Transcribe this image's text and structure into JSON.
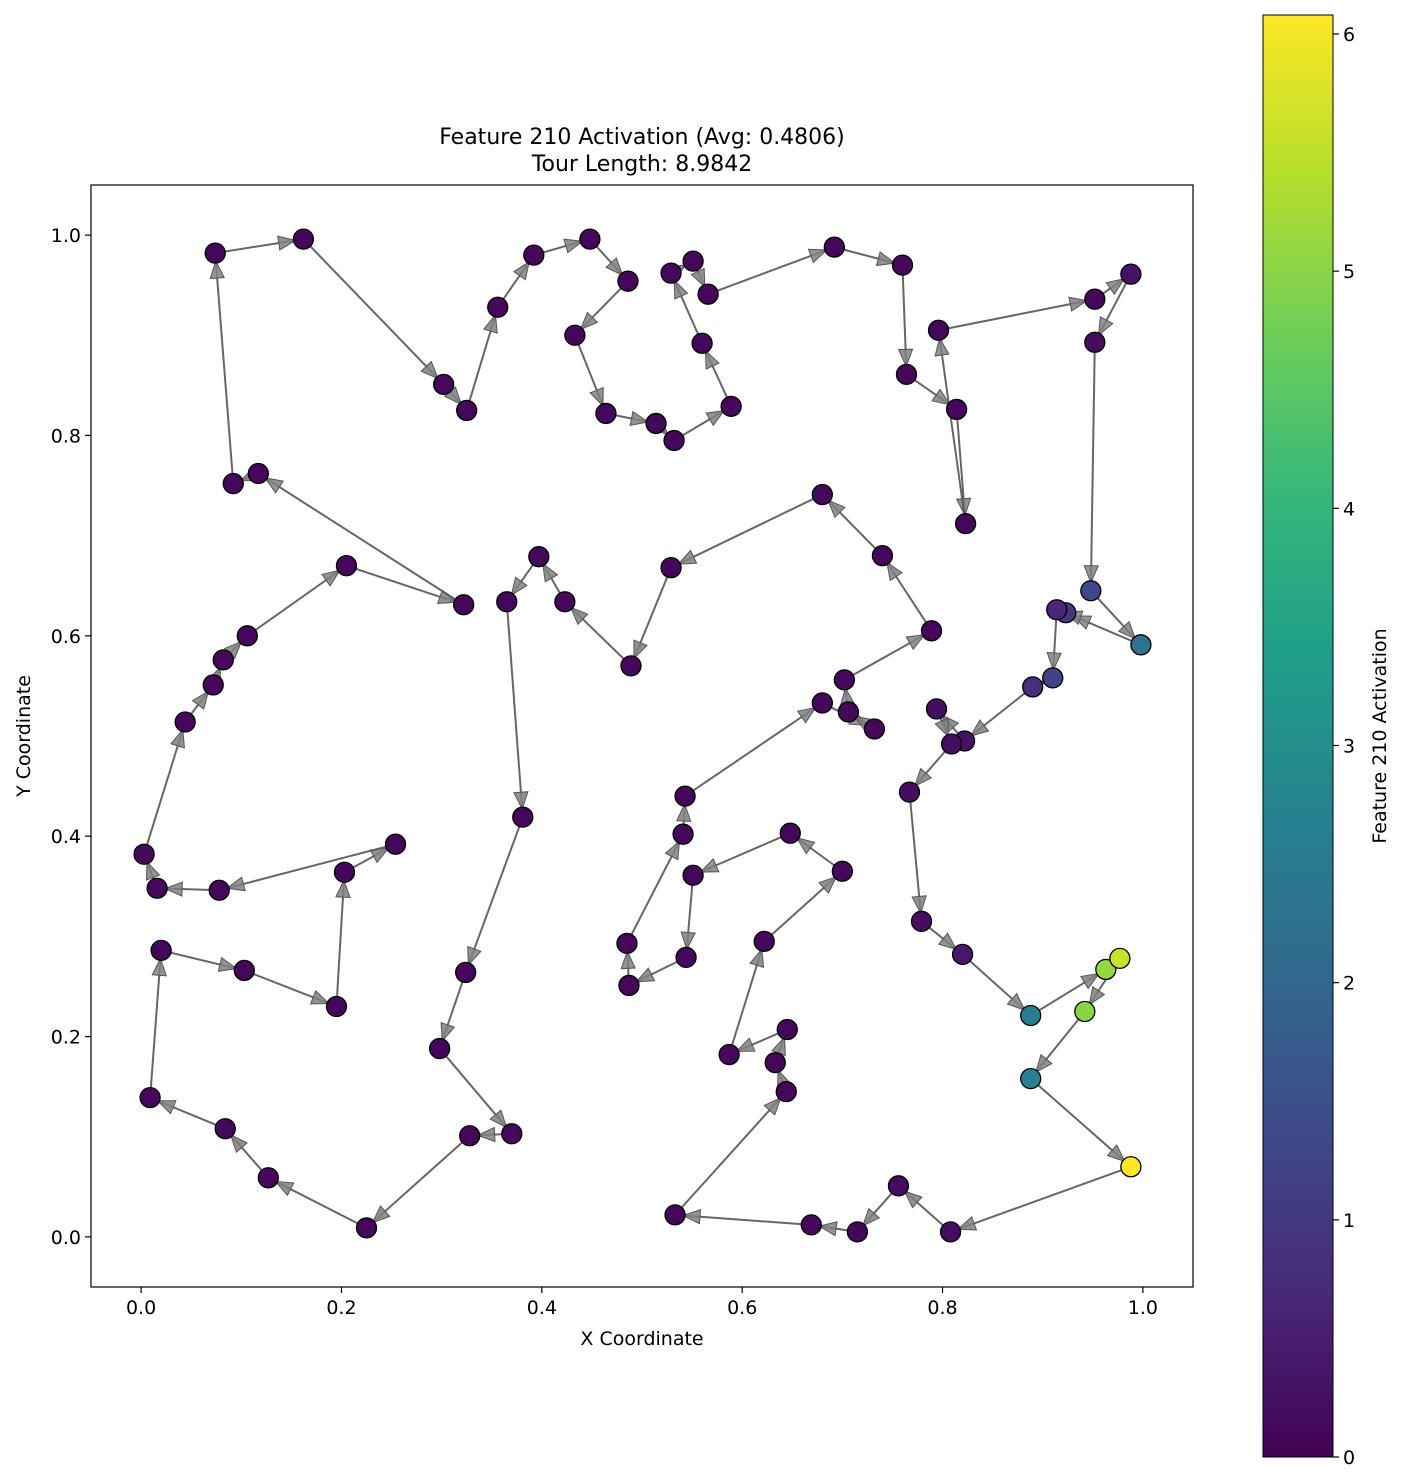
{
  "chart_data": {
    "type": "scatter",
    "title": "Feature 210 Activation (Avg: 0.4806)",
    "subtitle": "Tour Length: 8.9842",
    "xlabel": "X Coordinate",
    "ylabel": "Y Coordinate",
    "xlim": [
      -0.05,
      1.05
    ],
    "ylim": [
      -0.05,
      1.05
    ],
    "xticks": [
      "0.0",
      "0.2",
      "0.4",
      "0.6",
      "0.8",
      "1.0"
    ],
    "yticks": [
      "0.0",
      "0.2",
      "0.4",
      "0.6",
      "0.8",
      "1.0"
    ],
    "grid": false,
    "colorbar": {
      "label": "Feature 210 Activation",
      "min": 0,
      "max": 6.08,
      "ticks": [
        "0",
        "1",
        "2",
        "3",
        "4",
        "5",
        "6"
      ],
      "colormap": [
        "#440154",
        "#482878",
        "#3e4989",
        "#31688e",
        "#26828e",
        "#1f9e89",
        "#35b779",
        "#6ece58",
        "#b5de2b",
        "#fde725"
      ]
    },
    "edge_color": "#555555",
    "marker_edge_color": "#000000",
    "tour": [
      [
        0.074,
        0.982,
        0.1
      ],
      [
        0.162,
        0.996,
        0.1
      ],
      [
        0.302,
        0.851,
        0.1
      ],
      [
        0.325,
        0.825,
        0.1
      ],
      [
        0.356,
        0.928,
        0.1
      ],
      [
        0.392,
        0.98,
        0.1
      ],
      [
        0.448,
        0.996,
        0.1
      ],
      [
        0.486,
        0.954,
        0.1
      ],
      [
        0.433,
        0.9,
        0.1
      ],
      [
        0.464,
        0.822,
        0.1
      ],
      [
        0.514,
        0.812,
        0.1
      ],
      [
        0.532,
        0.795,
        0.1
      ],
      [
        0.589,
        0.829,
        0.1
      ],
      [
        0.56,
        0.892,
        0.1
      ],
      [
        0.529,
        0.962,
        0.1
      ],
      [
        0.551,
        0.974,
        0.1
      ],
      [
        0.566,
        0.941,
        0.1
      ],
      [
        0.692,
        0.988,
        0.1
      ],
      [
        0.76,
        0.97,
        0.1
      ],
      [
        0.764,
        0.861,
        0.1
      ],
      [
        0.814,
        0.826,
        0.1
      ],
      [
        0.823,
        0.712,
        0.1
      ],
      [
        0.796,
        0.905,
        0.1
      ],
      [
        0.952,
        0.936,
        0.1
      ],
      [
        0.988,
        0.961,
        0.3
      ],
      [
        0.952,
        0.893,
        0.2
      ],
      [
        0.948,
        0.645,
        1.3
      ],
      [
        0.998,
        0.591,
        2.3
      ],
      [
        0.923,
        0.623,
        1.0
      ],
      [
        0.914,
        0.626,
        0.7
      ],
      [
        0.91,
        0.558,
        1.2
      ],
      [
        0.89,
        0.549,
        0.8
      ],
      [
        0.822,
        0.495,
        0.3
      ],
      [
        0.794,
        0.527,
        0.2
      ],
      [
        0.809,
        0.492,
        0.2
      ],
      [
        0.767,
        0.444,
        0.2
      ],
      [
        0.779,
        0.315,
        0.2
      ],
      [
        0.82,
        0.282,
        0.4
      ],
      [
        0.888,
        0.221,
        2.6
      ],
      [
        0.963,
        0.267,
        5.1
      ],
      [
        0.977,
        0.278,
        5.6
      ],
      [
        0.942,
        0.225,
        5.0
      ],
      [
        0.888,
        0.158,
        2.7
      ],
      [
        0.988,
        0.07,
        6.08
      ],
      [
        0.808,
        0.005,
        0.2
      ],
      [
        0.756,
        0.051,
        0.2
      ],
      [
        0.715,
        0.005,
        0.1
      ],
      [
        0.669,
        0.012,
        0.1
      ],
      [
        0.533,
        0.022,
        0.1
      ],
      [
        0.644,
        0.145,
        0.1
      ],
      [
        0.633,
        0.174,
        0.1
      ],
      [
        0.645,
        0.207,
        0.1
      ],
      [
        0.587,
        0.182,
        0.1
      ],
      [
        0.622,
        0.295,
        0.1
      ],
      [
        0.7,
        0.365,
        0.1
      ],
      [
        0.648,
        0.403,
        0.1
      ],
      [
        0.551,
        0.361,
        0.1
      ],
      [
        0.544,
        0.279,
        0.1
      ],
      [
        0.487,
        0.251,
        0.1
      ],
      [
        0.485,
        0.293,
        0.1
      ],
      [
        0.541,
        0.402,
        0.1
      ],
      [
        0.543,
        0.44,
        0.1
      ],
      [
        0.68,
        0.533,
        0.1
      ],
      [
        0.732,
        0.507,
        0.1
      ],
      [
        0.706,
        0.524,
        0.1
      ],
      [
        0.702,
        0.556,
        0.1
      ],
      [
        0.789,
        0.605,
        0.1
      ],
      [
        0.74,
        0.68,
        0.1
      ],
      [
        0.68,
        0.741,
        0.1
      ],
      [
        0.529,
        0.668,
        0.1
      ],
      [
        0.489,
        0.57,
        0.1
      ],
      [
        0.423,
        0.634,
        0.1
      ],
      [
        0.397,
        0.679,
        0.1
      ],
      [
        0.365,
        0.634,
        0.1
      ],
      [
        0.381,
        0.419,
        0.1
      ],
      [
        0.324,
        0.264,
        0.1
      ],
      [
        0.298,
        0.188,
        0.1
      ],
      [
        0.37,
        0.103,
        0.1
      ],
      [
        0.328,
        0.101,
        0.1
      ],
      [
        0.225,
        0.009,
        0.1
      ],
      [
        0.127,
        0.059,
        0.1
      ],
      [
        0.084,
        0.108,
        0.1
      ],
      [
        0.009,
        0.139,
        0.1
      ],
      [
        0.02,
        0.286,
        0.1
      ],
      [
        0.103,
        0.266,
        0.1
      ],
      [
        0.195,
        0.23,
        0.1
      ],
      [
        0.203,
        0.364,
        0.1
      ],
      [
        0.254,
        0.392,
        0.1
      ],
      [
        0.078,
        0.346,
        0.1
      ],
      [
        0.016,
        0.348,
        0.1
      ],
      [
        0.003,
        0.382,
        0.1
      ],
      [
        0.044,
        0.514,
        0.1
      ],
      [
        0.072,
        0.551,
        0.1
      ],
      [
        0.082,
        0.576,
        0.1
      ],
      [
        0.106,
        0.6,
        0.1
      ],
      [
        0.205,
        0.67,
        0.1
      ],
      [
        0.322,
        0.631,
        0.1
      ],
      [
        0.117,
        0.762,
        0.1
      ],
      [
        0.092,
        0.752,
        0.1
      ]
    ],
    "closed_loop": true
  }
}
